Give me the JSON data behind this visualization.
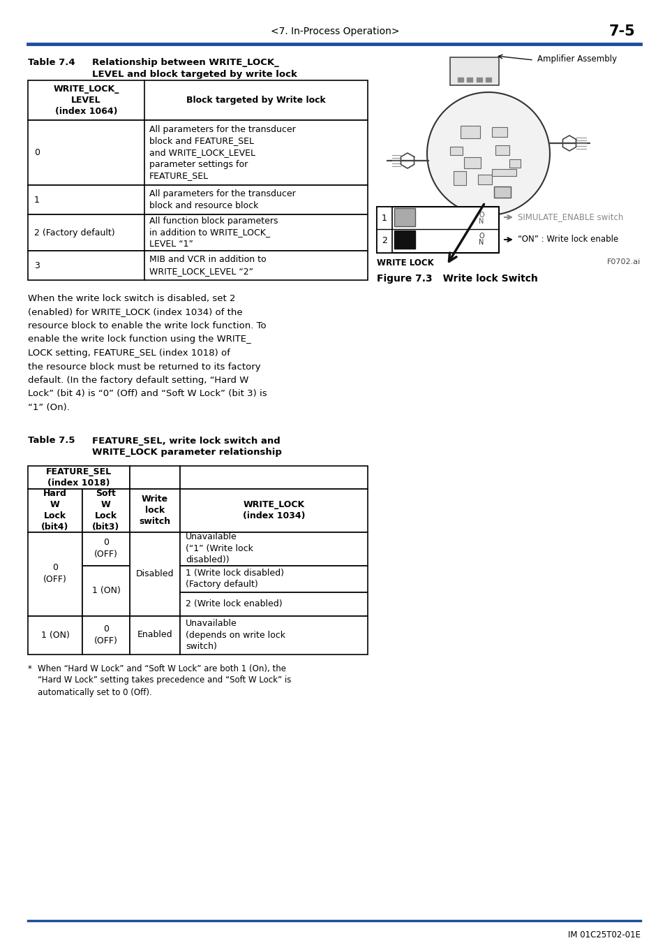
{
  "page_header_center": "<7. In-Process Operation>",
  "page_header_right": "7-5",
  "header_line_color": "#1e4d9e",
  "bg_color": "#ffffff",
  "text_color": "#1a1a1a",
  "table4_title_bold": "Table 7.4",
  "table4_title_text": "Relationship between WRITE_LOCK_\nLEVEL and block targeted by write lock",
  "table4_col1_header": "WRITE_LOCK_\nLEVEL\n(index 1064)",
  "table4_col2_header": "Block targeted by Write lock",
  "table4_rows": [
    [
      "0",
      "All parameters for the transducer\nblock and FEATURE_SEL\nand WRITE_LOCK_LEVEL\nparameter settings for\nFEATURE_SEL"
    ],
    [
      "1",
      "All parameters for the transducer\nblock and resource block"
    ],
    [
      "2 (Factory default)",
      "All function block parameters\nin addition to WRITE_LOCK_\nLEVEL “1”"
    ],
    [
      "3",
      "MIB and VCR in addition to\nWRITE_LOCK_LEVEL “2”"
    ]
  ],
  "body_text_lines": [
    "When the write lock switch is disabled, set 2",
    "(enabled) for WRITE_LOCK (index 1034) of the",
    "resource block to enable the write lock function. To",
    "enable the write lock function using the WRITE_",
    "LOCK setting, FEATURE_SEL (index 1018) of",
    "the resource block must be returned to its factory",
    "default. (In the factory default setting, “Hard W",
    "Lock” (bit 4) is “0” (Off) and “Soft W Lock” (bit 3) is",
    "“1” (On)."
  ],
  "table5_title_bold": "Table 7.5",
  "table5_title_text": "FEATURE_SEL, write lock switch and\nWRITE_LOCK parameter relationship",
  "figure_label": "Figure 7.3",
  "figure_title": "   Write lock Switch",
  "figure_code": "F0702.ai",
  "amplifier_label": "Amplifier Assembly",
  "simulate_label": "SIMULATE_ENABLE switch",
  "writeon_label": "“ON” : Write lock enable",
  "writelock_label": "WRITE LOCK",
  "footnote_marker": "*",
  "footnote_text": "When “Hard W Lock” and “Soft W Lock” are both 1 (On), the\n“Hard W Lock” setting takes precedence and “Soft W Lock” is\nautomatically set to 0 (Off).",
  "footer_text": "IM 01C25T02-01E",
  "table5_feature_header": "FEATURE_SEL\n(index 1018)",
  "table5_col_hard": "Hard\nW\nLock\n(bit4)",
  "table5_col_soft": "Soft\nW\nLock\n(bit3)",
  "table5_col_write": "Write\nlock\nswitch",
  "table5_col_wrlock": "WRITE_LOCK\n(index 1034)"
}
